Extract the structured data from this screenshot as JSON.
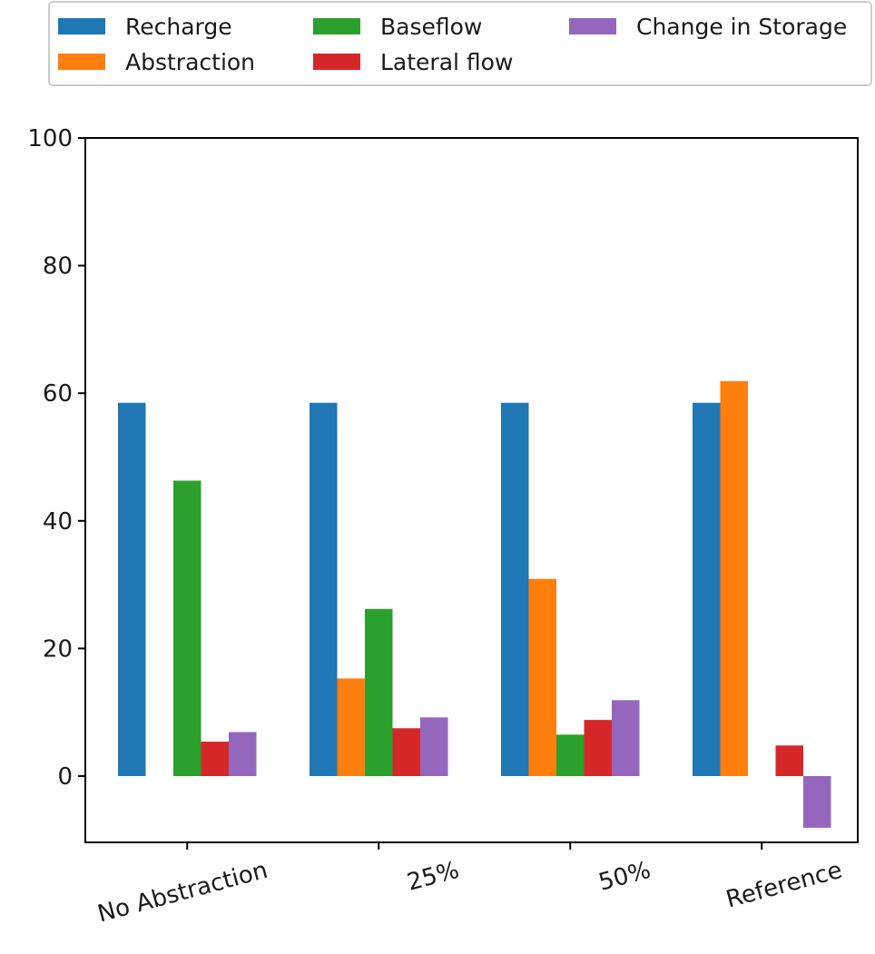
{
  "chart_data": {
    "type": "bar",
    "title": "",
    "xlabel": "",
    "ylabel": "",
    "categories": [
      "No Abstraction",
      "25%",
      "50%",
      "Reference"
    ],
    "ylim": [
      -10,
      100
    ],
    "yticks": [
      0,
      20,
      40,
      60,
      80,
      100
    ],
    "grid": false,
    "legend_position": "top",
    "series": [
      {
        "name": "Recharge",
        "color": "#1f77b4",
        "values": [
          58.5,
          58.5,
          58.5,
          58.5
        ]
      },
      {
        "name": "Abstraction",
        "color": "#ff7f0e",
        "values": [
          0,
          15.3,
          30.9,
          61.9
        ]
      },
      {
        "name": "Baseflow",
        "color": "#2ca02c",
        "values": [
          46.3,
          26.2,
          6.5,
          0
        ]
      },
      {
        "name": "Lateral flow",
        "color": "#d62728",
        "values": [
          5.4,
          7.5,
          8.8,
          4.8
        ]
      },
      {
        "name": "Change in Storage",
        "color": "#9467bd",
        "values": [
          6.9,
          9.2,
          11.9,
          -8.1
        ]
      }
    ]
  }
}
